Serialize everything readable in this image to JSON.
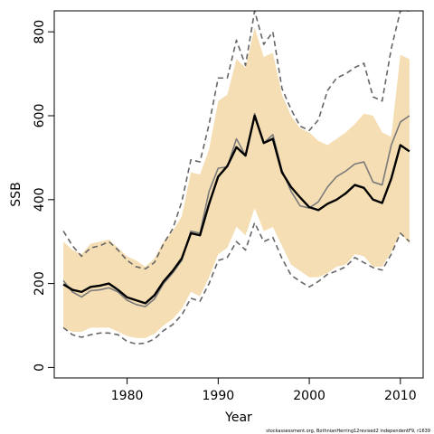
{
  "chart_data": {
    "type": "line",
    "title": "",
    "xlabel": "Year",
    "ylabel": "SSB",
    "xlim": [
      1972,
      2012.5
    ],
    "ylim": [
      -25,
      850
    ],
    "x_ticks": [
      1980,
      1990,
      2000,
      2010
    ],
    "y_ticks": [
      0,
      200,
      400,
      600,
      800
    ],
    "grid": false,
    "legend": "none",
    "x": [
      1973,
      1974,
      1975,
      1976,
      1977,
      1978,
      1979,
      1980,
      1981,
      1982,
      1983,
      1984,
      1985,
      1986,
      1987,
      1988,
      1989,
      1990,
      1991,
      1992,
      1993,
      1994,
      1995,
      1996,
      1997,
      1998,
      1999,
      2000,
      2001,
      2002,
      2003,
      2004,
      2005,
      2006,
      2007,
      2008,
      2009,
      2010,
      2011
    ],
    "series": [
      {
        "role": "band",
        "color": "#f5deb3",
        "lower": [
          95,
          85,
          85,
          95,
          95,
          95,
          85,
          75,
          70,
          70,
          80,
          100,
          115,
          140,
          180,
          170,
          215,
          270,
          285,
          335,
          315,
          380,
          325,
          335,
          290,
          245,
          230,
          215,
          215,
          225,
          240,
          245,
          270,
          265,
          240,
          240,
          275,
          320,
          295
        ],
        "upper": [
          300,
          280,
          270,
          295,
          300,
          305,
          285,
          265,
          255,
          240,
          260,
          300,
          325,
          360,
          465,
          460,
          520,
          635,
          650,
          735,
          715,
          810,
          740,
          750,
          650,
          600,
          570,
          560,
          540,
          530,
          545,
          560,
          580,
          605,
          600,
          560,
          550,
          745,
          735
        ]
      },
      {
        "role": "upper-ci",
        "style": "dashed",
        "color": "#666666",
        "values": [
          325,
          290,
          265,
          285,
          290,
          300,
          280,
          255,
          240,
          235,
          250,
          295,
          330,
          395,
          495,
          490,
          580,
          690,
          690,
          780,
          720,
          850,
          770,
          800,
          665,
          615,
          575,
          565,
          590,
          660,
          690,
          700,
          715,
          725,
          645,
          635,
          760,
          850,
          850
        ]
      },
      {
        "role": "lower-ci",
        "style": "dashed",
        "color": "#666666",
        "values": [
          95,
          78,
          72,
          78,
          82,
          82,
          78,
          62,
          56,
          58,
          68,
          88,
          102,
          125,
          165,
          158,
          200,
          255,
          262,
          300,
          280,
          345,
          300,
          310,
          260,
          220,
          205,
          192,
          205,
          222,
          230,
          240,
          262,
          250,
          238,
          232,
          270,
          320,
          300
        ]
      },
      {
        "role": "alternative-estimate",
        "color": "#7a7a7a",
        "values": [
          207,
          180,
          168,
          183,
          185,
          190,
          180,
          160,
          150,
          145,
          163,
          200,
          225,
          255,
          325,
          320,
          420,
          475,
          478,
          545,
          505,
          605,
          535,
          555,
          470,
          420,
          385,
          380,
          395,
          430,
          455,
          468,
          485,
          490,
          442,
          435,
          530,
          585,
          600
        ]
      },
      {
        "role": "estimate",
        "color": "#000000",
        "values": [
          198,
          185,
          180,
          192,
          195,
          200,
          185,
          167,
          160,
          153,
          172,
          205,
          230,
          260,
          320,
          315,
          390,
          455,
          480,
          525,
          505,
          600,
          535,
          545,
          465,
          430,
          405,
          382,
          375,
          390,
          400,
          415,
          435,
          428,
          400,
          392,
          450,
          530,
          515
        ]
      }
    ]
  },
  "footnote": "stockassessment.org, BothnianHerring12revised2 independentF9, r1639"
}
